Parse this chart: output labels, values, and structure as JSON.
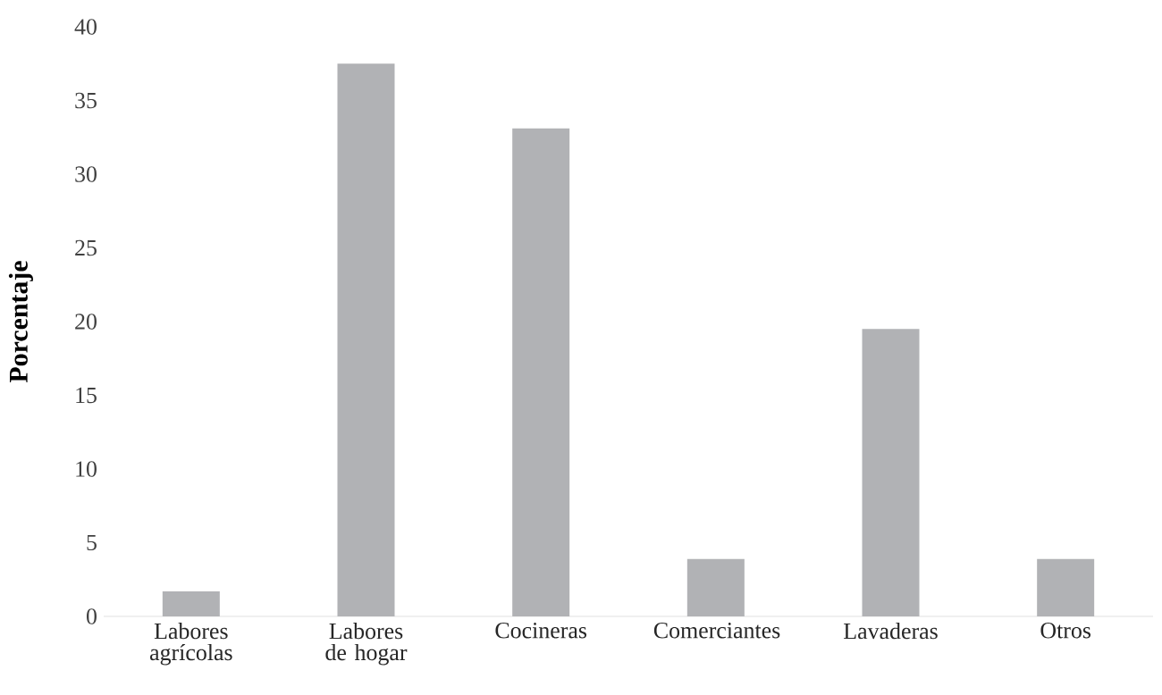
{
  "chart_data": {
    "type": "bar",
    "ylabel": "Porcentaje",
    "categories": [
      "Labores agrícolas",
      "Labores de hogar",
      "Cocineras",
      "Comerciantes",
      "Lavaderas",
      "Otros"
    ],
    "values": [
      1.7,
      37.5,
      33.1,
      3.9,
      19.5,
      3.9
    ],
    "color": "#b1b2b5",
    "ylim": [
      0,
      40
    ],
    "yticks": [
      0,
      5,
      10,
      15,
      20,
      25,
      30,
      35,
      40
    ]
  }
}
